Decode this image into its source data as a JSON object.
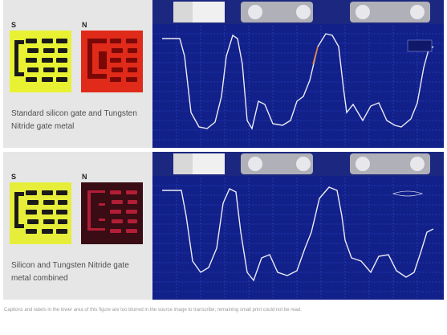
{
  "panels": [
    {
      "label_s": "S",
      "label_n": "N",
      "caption": "Standard silicon gate and Tungsten Nitride gate metal",
      "swatch_s_color": "#e8f232",
      "swatch_n_color": "#e02a1a",
      "swatch_n_inner": "#b81210"
    },
    {
      "label_s": "S",
      "label_n": "N",
      "caption": "Silicon and Tungsten Nitride gate metal combined",
      "swatch_s_color": "#e6ee3a",
      "swatch_n_color": "#3a0c14",
      "swatch_n_inner": "#c0203a"
    }
  ],
  "footnote": "Captions and labels in the lower area of this figure are too blurred in the source image to transcribe; remaining small print could not be read.",
  "colors": {
    "scope_bg": "#12208a",
    "grid": "#3050d0",
    "trace": "#e8e4f0",
    "trace_orange": "#e0803a"
  }
}
